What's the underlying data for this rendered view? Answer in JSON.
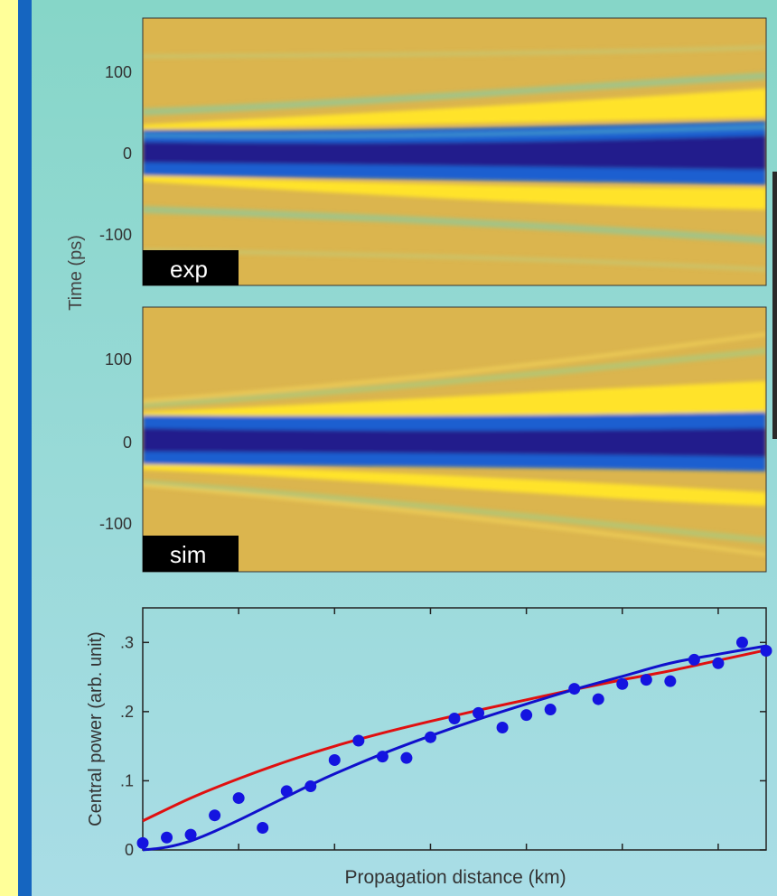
{
  "colors": {
    "bg_top": "#86d6c8",
    "bg_bottom": "#a9dde6",
    "left_strip": "#ffff99",
    "left_bar": "#1565c0",
    "map_bg": "#dbb54e",
    "pulse_dark": "#221a8c",
    "pulse_blue": "#1f5fd0",
    "lobe_yellow": "#ffe32a",
    "ripple_green": "#7fc6a0",
    "label_bg": "#000000",
    "red_curve": "#e01010",
    "blue_curve": "#1010cc",
    "dots": "#1414e0"
  },
  "heatmaps": [
    {
      "tag": "exp",
      "y_ticks": [
        "100",
        "0",
        "-100"
      ]
    },
    {
      "tag": "sim",
      "y_ticks": [
        "100",
        "0",
        "-100"
      ]
    }
  ],
  "heatmap_ylabel": "Time (ps)",
  "chart_data": {
    "type": "scatter",
    "xlabel": "Propagation distance (km)",
    "ylabel": "Central power (arb. unit)",
    "xlim": [
      0,
      26
    ],
    "ylim": [
      0,
      0.35
    ],
    "y_ticks": [
      {
        "value": 0,
        "label": "0"
      },
      {
        "value": 0.1,
        "label": ".1"
      },
      {
        "value": 0.2,
        "label": ".2"
      },
      {
        "value": 0.3,
        "label": ".3"
      }
    ],
    "x_ticks": [
      4,
      8,
      12,
      16,
      20,
      24
    ],
    "points": {
      "x": [
        0,
        1,
        2,
        3,
        4,
        5,
        6,
        7,
        8,
        9,
        10,
        11,
        12,
        13,
        14,
        15,
        16,
        17,
        18,
        19,
        20,
        21,
        22,
        23,
        24,
        25,
        26
      ],
      "y": [
        0.01,
        0.018,
        0.022,
        0.05,
        0.075,
        0.032,
        0.085,
        0.092,
        0.13,
        0.158,
        0.135,
        0.133,
        0.163,
        0.19,
        0.198,
        0.177,
        0.195,
        0.203,
        0.233,
        0.218,
        0.24,
        0.246,
        0.244,
        0.275,
        0.27,
        0.3,
        0.288
      ]
    },
    "series": [
      {
        "color": "red",
        "x": [
          0,
          2,
          4,
          6,
          8,
          10,
          12,
          14,
          16,
          18,
          20,
          22,
          24,
          26
        ],
        "values": [
          0.042,
          0.075,
          0.103,
          0.128,
          0.15,
          0.169,
          0.186,
          0.202,
          0.217,
          0.232,
          0.246,
          0.259,
          0.274,
          0.289
        ]
      },
      {
        "color": "blue",
        "x": [
          0,
          1,
          2,
          3,
          4,
          5,
          6,
          7,
          8,
          10,
          12,
          14,
          16,
          18,
          20,
          22,
          24,
          26
        ],
        "values": [
          0.0,
          0.004,
          0.013,
          0.027,
          0.043,
          0.06,
          0.077,
          0.094,
          0.11,
          0.139,
          0.165,
          0.189,
          0.211,
          0.232,
          0.251,
          0.27,
          0.283,
          0.295
        ]
      }
    ]
  }
}
